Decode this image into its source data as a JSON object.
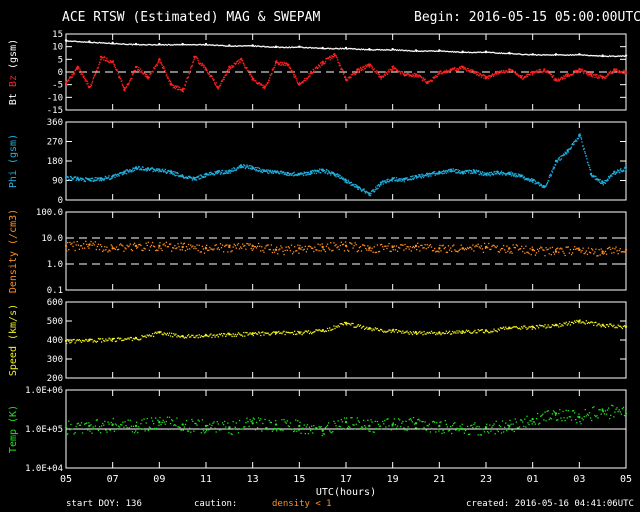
{
  "title": "ACE RTSW (Estimated) MAG & SWEPAM",
  "begin": "Begin: 2016-05-15 05:00:00UTC",
  "footer": {
    "start_doy": "start DOY: 136",
    "caution": "caution:",
    "density_note": "density < 1",
    "created": "created: 2016-05-16 04:41:06UTC"
  },
  "colors": {
    "bt": "#ffffff",
    "bz": "#ff2020",
    "phi": "#20b0e0",
    "density": "#ff9020",
    "speed": "#f0f020",
    "temp": "#20e020",
    "frame": "#ffffff",
    "background": "#000000"
  },
  "chart_data": {
    "type": "scatter",
    "x_axis": {
      "label": "UTC(hours)",
      "ticks": [
        "05",
        "07",
        "09",
        "11",
        "13",
        "15",
        "17",
        "19",
        "21",
        "23",
        "01",
        "03",
        "05"
      ],
      "range_hours": [
        0,
        24
      ]
    },
    "panels": [
      {
        "id": "mag",
        "ylabel_parts": [
          "Bt",
          "Bz",
          "(gsm)"
        ],
        "yticks": [
          "15",
          "10",
          "5",
          "0",
          "-5",
          "-10",
          "-15"
        ],
        "ylim": [
          -15,
          15
        ],
        "dashed_lines": [
          0
        ],
        "series": [
          {
            "name": "Bt",
            "color": "#ffffff",
            "x": [
              0,
              1,
              2,
              3,
              4,
              5,
              6,
              7,
              8,
              9,
              10,
              11,
              12,
              13,
              14,
              15,
              16,
              17,
              18,
              19,
              20,
              21,
              22,
              23,
              24
            ],
            "y": [
              12.5,
              12,
              11.5,
              11,
              11,
              11,
              11,
              10.5,
              10.5,
              10,
              10,
              9.5,
              9.5,
              9,
              9,
              8.5,
              8.5,
              8,
              8,
              7.5,
              7,
              7,
              7,
              6.5,
              6.5
            ]
          },
          {
            "name": "Bz",
            "color": "#ff2020",
            "x": [
              0,
              0.5,
              1,
              1.5,
              2,
              2.5,
              3,
              3.5,
              4,
              4.5,
              5,
              5.5,
              6,
              6.5,
              7,
              7.5,
              8,
              8.5,
              9,
              9.5,
              10,
              10.5,
              11,
              11.5,
              12,
              12.5,
              13,
              13.5,
              14,
              14.5,
              15,
              15.5,
              16,
              16.5,
              17,
              17.5,
              18,
              18.5,
              19,
              19.5,
              20,
              20.5,
              21,
              21.5,
              22,
              22.5,
              23,
              23.5,
              24
            ],
            "y": [
              -4,
              2,
              -6,
              6,
              4,
              -7,
              2,
              -2,
              5,
              -5,
              -7,
              6,
              1,
              -6,
              2,
              5,
              -3,
              -6,
              4,
              3,
              -5,
              0,
              4,
              7,
              -3,
              1,
              3,
              -2,
              2,
              -1,
              -1,
              -4,
              0,
              1,
              2,
              0,
              -2,
              0,
              1,
              -2,
              0,
              1,
              -3,
              -1,
              1,
              -1,
              -2,
              1,
              0
            ]
          }
        ]
      },
      {
        "id": "phi",
        "ylabel_parts": [
          "Phi (gsm)"
        ],
        "yticks": [
          "360",
          "270",
          "180",
          "90",
          "0"
        ],
        "ylim": [
          0,
          360
        ],
        "series": [
          {
            "name": "Phi",
            "color": "#20b0e0",
            "x": [
              0,
              0.5,
              1,
              1.5,
              2,
              2.5,
              3,
              3.5,
              4,
              4.5,
              5,
              5.5,
              6,
              6.5,
              7,
              7.5,
              8,
              8.5,
              9,
              9.5,
              10,
              10.5,
              11,
              11.5,
              12,
              12.5,
              13,
              13.5,
              14,
              14.5,
              15,
              15.5,
              16,
              16.5,
              17,
              17.5,
              18,
              18.5,
              19,
              19.5,
              20,
              20.5,
              21,
              21.5,
              22,
              22.5,
              23,
              23.5,
              24
            ],
            "y": [
              105,
              100,
              95,
              100,
              110,
              130,
              150,
              145,
              140,
              130,
              110,
              100,
              120,
              130,
              135,
              160,
              150,
              135,
              130,
              125,
              120,
              130,
              140,
              120,
              90,
              60,
              30,
              80,
              100,
              95,
              110,
              120,
              130,
              140,
              130,
              135,
              120,
              130,
              125,
              110,
              90,
              60,
              180,
              230,
              300,
              120,
              80,
              130,
              150
            ]
          }
        ]
      },
      {
        "id": "density",
        "ylabel_parts": [
          "Density (/cm3)"
        ],
        "yticks": [
          "100.0",
          "10.0",
          "1.0",
          "0.1"
        ],
        "ylim": [
          0.1,
          100
        ],
        "log_scale": true,
        "dashed_lines": [
          10,
          1
        ],
        "series": [
          {
            "name": "Density",
            "color": "#ff9020",
            "x": [
              0,
              1,
              2,
              3,
              4,
              5,
              6,
              7,
              8,
              9,
              10,
              11,
              12,
              13,
              14,
              15,
              16,
              17,
              18,
              19,
              20,
              21,
              22,
              23,
              24
            ],
            "y": [
              5,
              5.5,
              4,
              5,
              5,
              4.5,
              4,
              4.5,
              5,
              3.5,
              4,
              4.5,
              5,
              4,
              4.5,
              5,
              4,
              4,
              4.5,
              4,
              3.5,
              3,
              3.5,
              3,
              3.5
            ]
          }
        ]
      },
      {
        "id": "speed",
        "ylabel_parts": [
          "Speed (km/s)"
        ],
        "yticks": [
          "600",
          "500",
          "400",
          "300",
          "200"
        ],
        "ylim": [
          200,
          600
        ],
        "series": [
          {
            "name": "Speed",
            "color": "#f0f020",
            "x": [
              0,
              1,
              2,
              3,
              4,
              5,
              6,
              7,
              8,
              9,
              10,
              11,
              12,
              13,
              14,
              15,
              16,
              17,
              18,
              19,
              20,
              21,
              22,
              23,
              24
            ],
            "y": [
              395,
              400,
              405,
              410,
              440,
              420,
              425,
              430,
              435,
              440,
              440,
              450,
              490,
              460,
              450,
              440,
              440,
              445,
              450,
              465,
              470,
              480,
              500,
              480,
              470
            ]
          }
        ]
      },
      {
        "id": "temp",
        "ylabel_parts": [
          "Temp (K)"
        ],
        "yticks": [
          "1.0E+06",
          "1.0E+05",
          "1.0E+04"
        ],
        "ylim": [
          10000,
          1000000
        ],
        "log_scale": true,
        "solid_lines": [
          100000
        ],
        "series": [
          {
            "name": "Temp",
            "color": "#20e020",
            "x": [
              0,
              1,
              2,
              3,
              4,
              5,
              6,
              7,
              8,
              9,
              10,
              11,
              12,
              13,
              14,
              15,
              16,
              17,
              18,
              19,
              20,
              21,
              22,
              23,
              24
            ],
            "y": [
              110000,
              120000,
              130000,
              120000,
              150000,
              130000,
              120000,
              110000,
              140000,
              130000,
              120000,
              90000,
              150000,
              120000,
              130000,
              140000,
              120000,
              100000,
              110000,
              120000,
              180000,
              250000,
              200000,
              300000,
              250000
            ]
          }
        ]
      }
    ]
  }
}
